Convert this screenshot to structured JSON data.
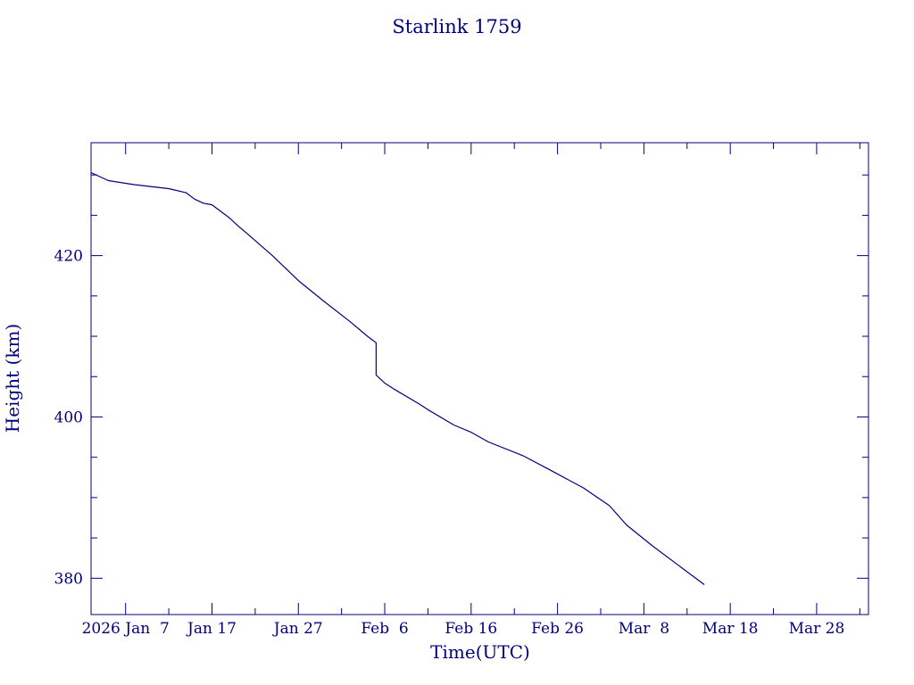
{
  "chart_data": {
    "type": "line",
    "title": "Starlink 1759",
    "xlabel": "Time(UTC)",
    "ylabel": "Height (km)",
    "color": "#00007f",
    "x_range": [
      "2026-01-03",
      "2026-04-03"
    ],
    "ylim": [
      375.5,
      434
    ],
    "y_ticks": [
      380,
      400,
      420
    ],
    "y_minor_step": 5,
    "x_ticks": [
      {
        "date": "2026-01-07",
        "label": "2026 Jan  7"
      },
      {
        "date": "2026-01-17",
        "label": "Jan 17"
      },
      {
        "date": "2026-01-27",
        "label": "Jan 27"
      },
      {
        "date": "2026-02-06",
        "label": "Feb  6"
      },
      {
        "date": "2026-02-16",
        "label": "Feb 16"
      },
      {
        "date": "2026-02-26",
        "label": "Feb 26"
      },
      {
        "date": "2026-03-08",
        "label": "Mar  8"
      },
      {
        "date": "2026-03-18",
        "label": "Mar 18"
      },
      {
        "date": "2026-03-28",
        "label": "Mar 28"
      }
    ],
    "series": [
      {
        "x": [
          "2026-01-03",
          "2026-01-05",
          "2026-01-08",
          "2026-01-12",
          "2026-01-14",
          "2026-01-15",
          "2026-01-16",
          "2026-01-17",
          "2026-01-19",
          "2026-01-20",
          "2026-01-21",
          "2026-01-24",
          "2026-01-27",
          "2026-01-30",
          "2026-02-02",
          "2026-02-04",
          "2026-02-05",
          "2026-02-05",
          "2026-02-05",
          "2026-02-06",
          "2026-02-07",
          "2026-02-10",
          "2026-02-11",
          "2026-02-14",
          "2026-02-16",
          "2026-02-18",
          "2026-02-22",
          "2026-02-25",
          "2026-03-01",
          "2026-03-04",
          "2026-03-06",
          "2026-03-09",
          "2026-03-12",
          "2026-03-15"
        ],
        "values": [
          430.3,
          429.3,
          428.8,
          428.3,
          427.8,
          427.0,
          426.5,
          426.3,
          424.7,
          423.7,
          422.8,
          420.0,
          416.9,
          414.3,
          411.8,
          410.0,
          409.2,
          408.7,
          405.2,
          404.2,
          403.5,
          401.6,
          400.9,
          399.0,
          398.1,
          396.9,
          395.2,
          393.5,
          391.2,
          389.0,
          386.6,
          384.0,
          381.6,
          379.2
        ]
      }
    ]
  }
}
